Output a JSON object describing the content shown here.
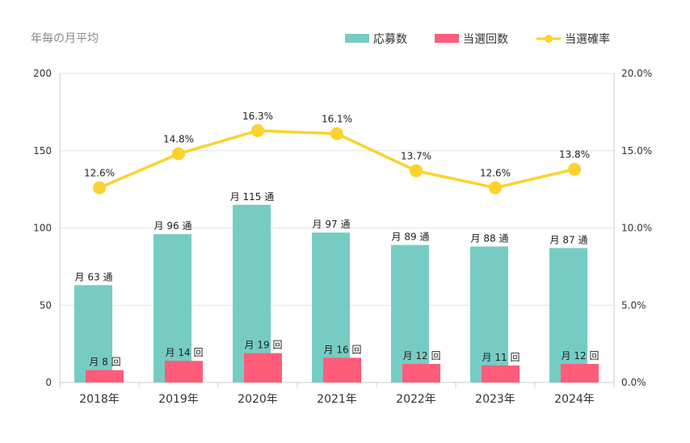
{
  "chart_data": {
    "type": "bar",
    "title": "年毎の月平均",
    "categories": [
      "2018年",
      "2019年",
      "2020年",
      "2021年",
      "2022年",
      "2023年",
      "2024年"
    ],
    "series": [
      {
        "name": "応募数",
        "kind": "bar",
        "axis": "left",
        "color": "#76ccc3",
        "values": [
          63,
          96,
          115,
          97,
          89,
          88,
          87
        ],
        "labels": [
          "月 63 通",
          "月 96 通",
          "月 115 通",
          "月 97 通",
          "月 89 通",
          "月 88 通",
          "月 87 通"
        ]
      },
      {
        "name": "当選回数",
        "kind": "bar",
        "axis": "left",
        "color": "#ff5c7a",
        "values": [
          8,
          14,
          19,
          16,
          12,
          11,
          12
        ],
        "labels": [
          "月 8 回",
          "月 14 回",
          "月 19 回",
          "月 16 回",
          "月 12 回",
          "月 11 回",
          "月 12 回"
        ]
      },
      {
        "name": "当選確率",
        "kind": "line",
        "axis": "right",
        "color": "#fbd22e",
        "values": [
          12.6,
          14.8,
          16.3,
          16.1,
          13.7,
          12.6,
          13.8
        ],
        "labels": [
          "12.6%",
          "14.8%",
          "16.3%",
          "16.1%",
          "13.7%",
          "12.6%",
          "13.8%"
        ]
      }
    ],
    "yleft": {
      "min": 0,
      "max": 200,
      "ticks": [
        "0",
        "50",
        "100",
        "150",
        "200"
      ]
    },
    "yright": {
      "min": 0,
      "max": 20,
      "ticks": [
        "0.0%",
        "5.0%",
        "10.0%",
        "15.0%",
        "20.0%"
      ]
    },
    "grid": true,
    "legend_position": "top-right"
  }
}
